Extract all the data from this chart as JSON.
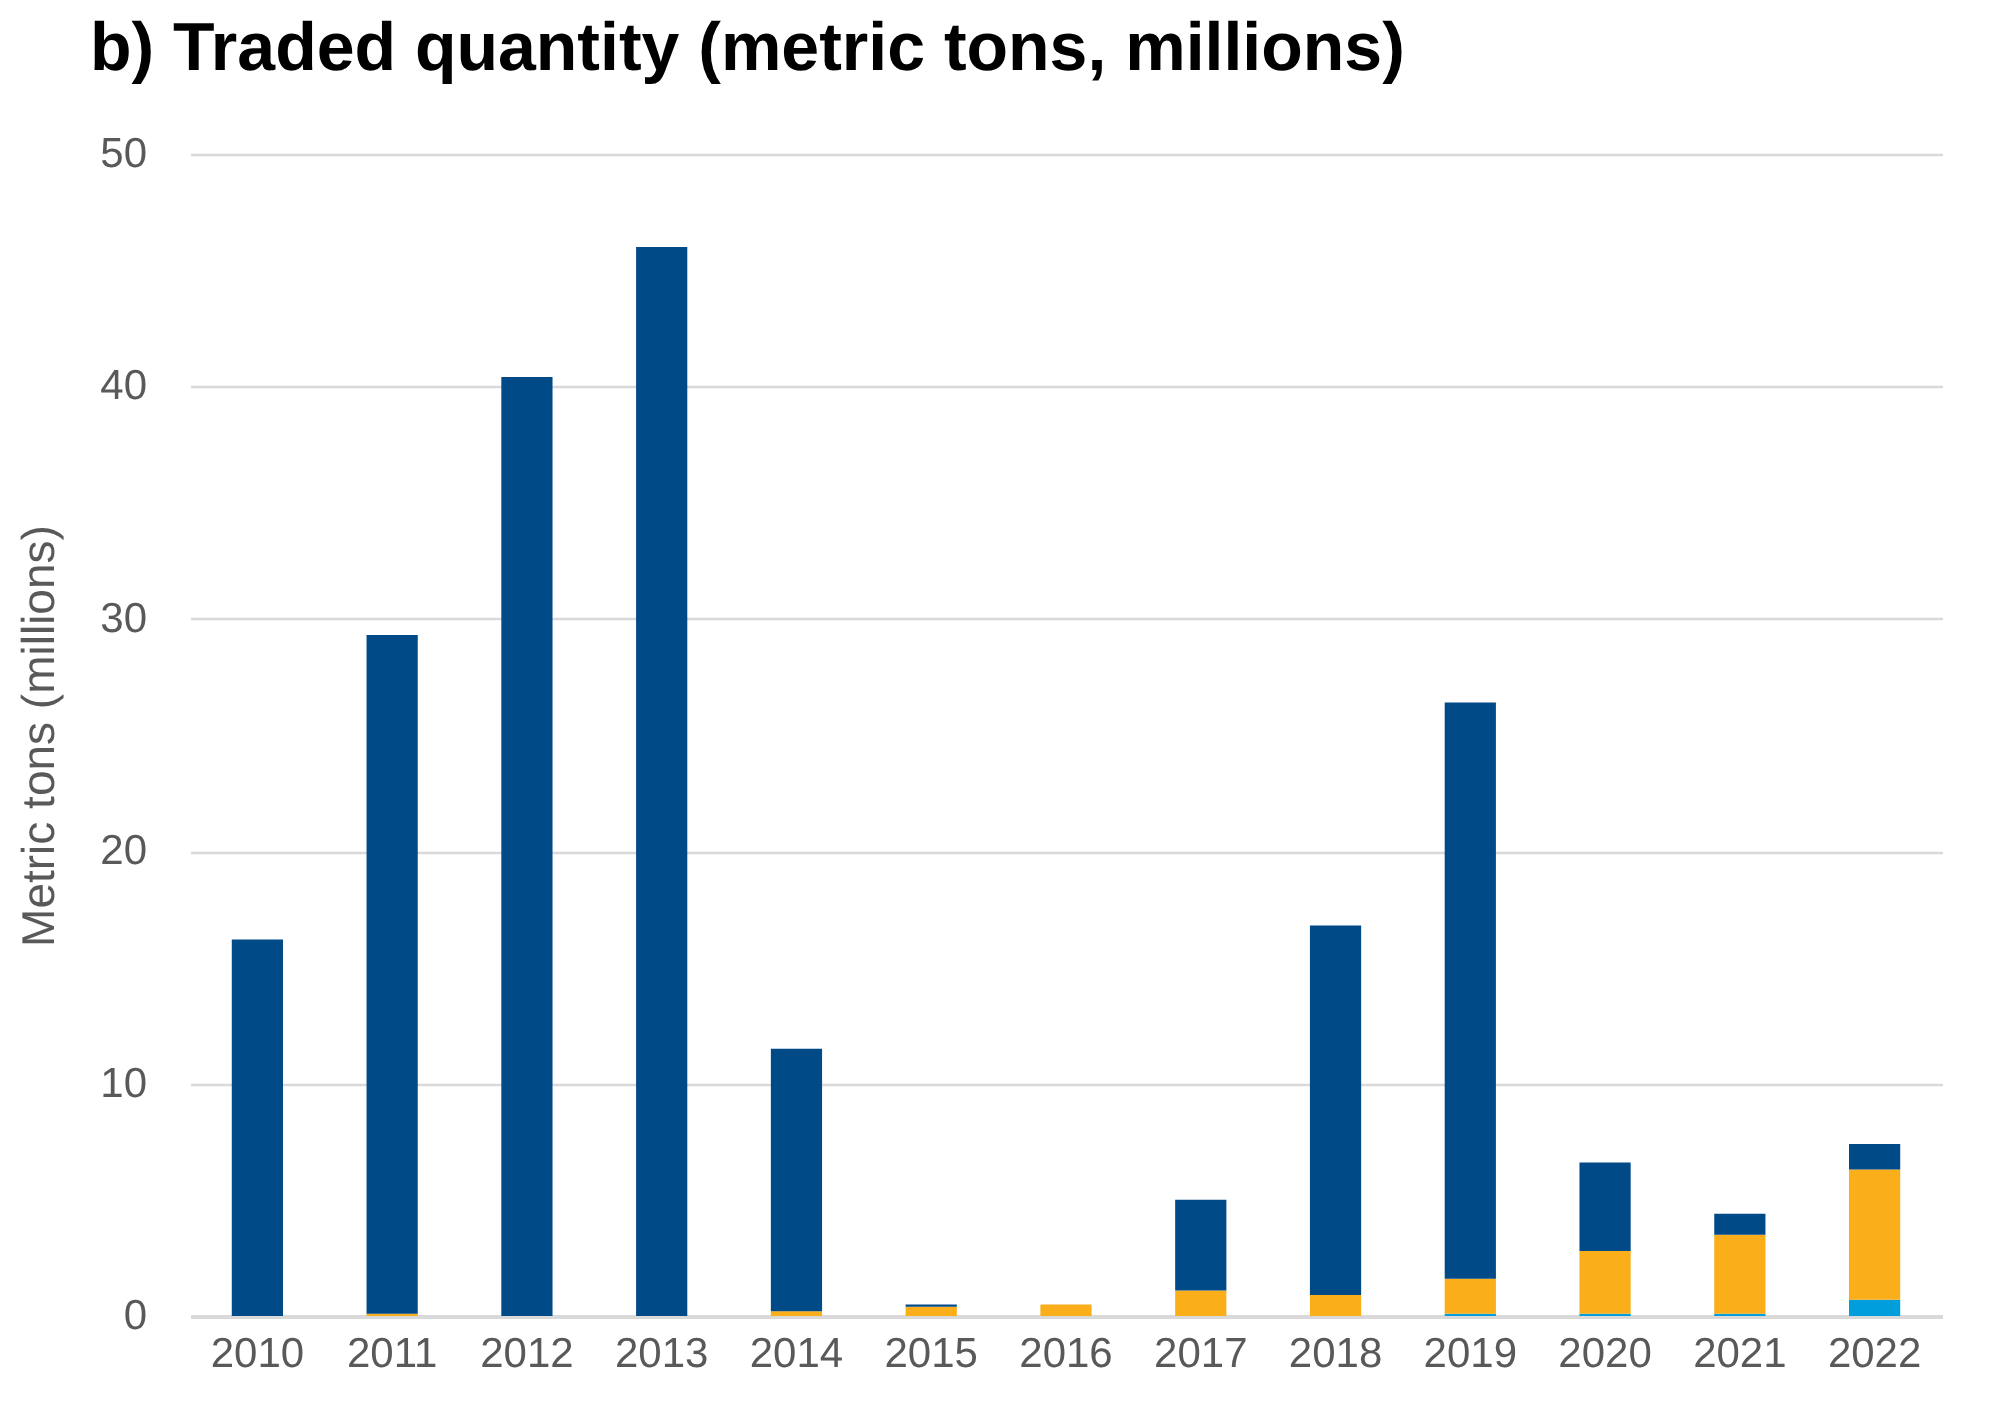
{
  "chart_data": {
    "type": "bar",
    "title": "b) Traded quantity (metric tons, millions)",
    "ylabel": "Metric tons (millions)",
    "stacked": true,
    "grid": "y",
    "legend": false,
    "categories": [
      "2010",
      "2011",
      "2012",
      "2013",
      "2014",
      "2015",
      "2016",
      "2017",
      "2018",
      "2019",
      "2020",
      "2021",
      "2022"
    ],
    "ylim": [
      0,
      50
    ],
    "yticks": [
      0,
      10,
      20,
      30,
      40,
      50
    ],
    "series": [
      {
        "color": "#009edb",
        "values": [
          0,
          0,
          0,
          0,
          0,
          0,
          0,
          0,
          0,
          0.1,
          0.1,
          0.1,
          0.7
        ]
      },
      {
        "color": "#f9ae1a",
        "values": [
          0,
          0.1,
          0,
          0,
          0.2,
          0.4,
          0.5,
          1.1,
          0.9,
          1.5,
          2.7,
          3.4,
          5.6
        ]
      },
      {
        "color": "#004a87",
        "values": [
          16.2,
          29.2,
          40.4,
          46,
          11.3,
          0.1,
          0,
          3.9,
          15.9,
          24.8,
          3.8,
          0.9,
          1.1
        ]
      }
    ]
  }
}
